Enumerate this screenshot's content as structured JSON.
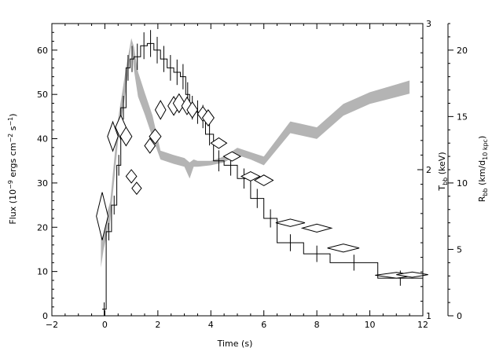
{
  "chart_data": {
    "type": "line",
    "xlabel": "Time (s)",
    "ylabel_left_parts": [
      "Flux (10",
      "−9",
      " ergs cm",
      "−2",
      " s",
      "−1",
      ")"
    ],
    "ylabel_right_mid_parts": [
      "T",
      "bb",
      " (keV)"
    ],
    "ylabel_right_outer_parts": [
      "R",
      "bb",
      " (km/d",
      "10 kpc",
      ")"
    ],
    "xlim": [
      -2,
      12
    ],
    "ylim_left": [
      0,
      66
    ],
    "ylim_right_mid": [
      1,
      3
    ],
    "ylim_right_outer": [
      0,
      22
    ],
    "x_ticks": [
      "−2",
      "0",
      "2",
      "4",
      "6",
      "8",
      "10",
      "12"
    ],
    "y_ticks_left": [
      "0",
      "10",
      "20",
      "30",
      "40",
      "50",
      "60"
    ],
    "y_ticks_right_mid": [
      "1",
      "2",
      "3"
    ],
    "y_ticks_right_outer": [
      "0",
      "5",
      "10",
      "15",
      "20"
    ],
    "grid": false,
    "series": [
      {
        "style": "histogram",
        "color": "#000000",
        "bins": [
          [
            -0.1,
            0.05,
            1.5
          ],
          [
            0.05,
            0.25,
            19
          ],
          [
            0.25,
            0.45,
            25
          ],
          [
            0.45,
            0.6,
            34
          ],
          [
            0.6,
            0.8,
            47
          ],
          [
            0.8,
            0.95,
            56
          ],
          [
            0.95,
            1.1,
            58
          ],
          [
            1.1,
            1.35,
            58.5
          ],
          [
            1.35,
            1.6,
            61
          ],
          [
            1.6,
            1.85,
            61.5
          ],
          [
            1.85,
            2.1,
            60
          ],
          [
            2.1,
            2.35,
            58
          ],
          [
            2.35,
            2.6,
            56
          ],
          [
            2.6,
            2.85,
            55
          ],
          [
            2.85,
            3.05,
            54
          ],
          [
            3.05,
            3.2,
            50
          ],
          [
            3.2,
            3.4,
            47
          ],
          [
            3.4,
            3.6,
            46
          ],
          [
            3.6,
            3.8,
            45
          ],
          [
            3.8,
            4.1,
            41
          ],
          [
            4.1,
            4.5,
            35
          ],
          [
            4.5,
            5.0,
            34
          ],
          [
            5.0,
            5.5,
            31
          ],
          [
            5.5,
            6.0,
            26.5
          ],
          [
            6.0,
            6.5,
            22
          ],
          [
            6.5,
            7.5,
            16.5
          ],
          [
            7.5,
            8.5,
            14
          ],
          [
            8.5,
            10.3,
            12
          ],
          [
            10.3,
            12.0,
            8.5
          ]
        ]
      },
      {
        "style": "band",
        "color": "#b4b4b4",
        "axis": "Tbb",
        "x": [
          -0.15,
          -0.05,
          0.2,
          0.5,
          0.8,
          1.0,
          1.1,
          1.25,
          1.5,
          1.8,
          2.1,
          2.6,
          3.0,
          3.2,
          3.35,
          3.5,
          4.0,
          4.5,
          5.0,
          5.5,
          6.0,
          7.0,
          8.0,
          9.0,
          10.0,
          11.5
        ],
        "y_low": [
          1.33,
          1.45,
          1.65,
          2.2,
          2.55,
          2.86,
          2.68,
          2.5,
          2.38,
          2.22,
          2.07,
          2.04,
          2.02,
          1.94,
          2.02,
          2.02,
          2.03,
          2.05,
          2.1,
          2.07,
          2.03,
          2.25,
          2.21,
          2.37,
          2.45,
          2.52
        ],
        "y_high": [
          1.55,
          1.62,
          1.78,
          2.35,
          2.7,
          2.9,
          2.84,
          2.67,
          2.53,
          2.37,
          2.13,
          2.1,
          2.08,
          2.05,
          2.07,
          2.06,
          2.06,
          2.09,
          2.15,
          2.12,
          2.09,
          2.33,
          2.29,
          2.45,
          2.53,
          2.61
        ]
      },
      {
        "style": "diamonds",
        "color": "#000000",
        "axis": "Rbb",
        "points": [
          [
            -0.1,
            7.5,
            0.22,
            1.8
          ],
          [
            0.3,
            13.5,
            0.2,
            1.1
          ],
          [
            0.6,
            14.2,
            0.2,
            0.9
          ],
          [
            0.8,
            13.5,
            0.22,
            0.7
          ],
          [
            1.0,
            10.5,
            0.2,
            0.5
          ],
          [
            1.2,
            9.6,
            0.18,
            0.45
          ],
          [
            1.7,
            12.8,
            0.2,
            0.55
          ],
          [
            1.9,
            13.5,
            0.22,
            0.55
          ],
          [
            2.1,
            15.5,
            0.2,
            0.7
          ],
          [
            2.6,
            15.8,
            0.22,
            0.7
          ],
          [
            2.8,
            16.0,
            0.22,
            0.7
          ],
          [
            3.1,
            15.8,
            0.2,
            0.65
          ],
          [
            3.3,
            15.5,
            0.2,
            0.6
          ],
          [
            3.7,
            15.2,
            0.2,
            0.55
          ],
          [
            3.9,
            14.9,
            0.22,
            0.6
          ],
          [
            4.3,
            13.0,
            0.3,
            0.4
          ],
          [
            4.8,
            12.0,
            0.32,
            0.35
          ],
          [
            5.5,
            10.5,
            0.35,
            0.35
          ],
          [
            6.0,
            10.2,
            0.35,
            0.4
          ],
          [
            7.0,
            7.0,
            0.55,
            0.28
          ],
          [
            8.0,
            6.6,
            0.55,
            0.3
          ],
          [
            9.0,
            5.1,
            0.6,
            0.3
          ],
          [
            11.0,
            3.05,
            0.8,
            0.22
          ],
          [
            11.6,
            3.1,
            0.6,
            0.2
          ]
        ]
      }
    ]
  }
}
